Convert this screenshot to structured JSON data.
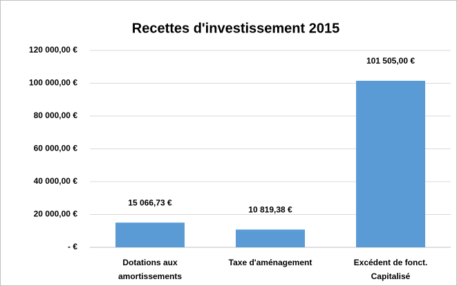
{
  "chart_data": {
    "type": "bar",
    "title": "Recettes d'investissement 2015",
    "categories": [
      "Dotations aux amortissements",
      "Taxe d'aménagement",
      "Excédent de fonct. Capitalisé"
    ],
    "values": [
      15066.73,
      10819.38,
      101505
    ],
    "value_labels": [
      "15 066,73 €",
      "10 819,38 €",
      "101 505,00 €"
    ],
    "color": "#5b9bd5",
    "ylim": [
      0,
      120000
    ],
    "yticks": [
      {
        "value": 0,
        "label": "-   €"
      },
      {
        "value": 20000,
        "label": "20 000,00 €"
      },
      {
        "value": 40000,
        "label": "40 000,00 €"
      },
      {
        "value": 60000,
        "label": "60 000,00 €"
      },
      {
        "value": 80000,
        "label": "80 000,00 €"
      },
      {
        "value": 100000,
        "label": "100 000,00 €"
      },
      {
        "value": 120000,
        "label": "120 000,00 €"
      }
    ],
    "grid": true
  }
}
